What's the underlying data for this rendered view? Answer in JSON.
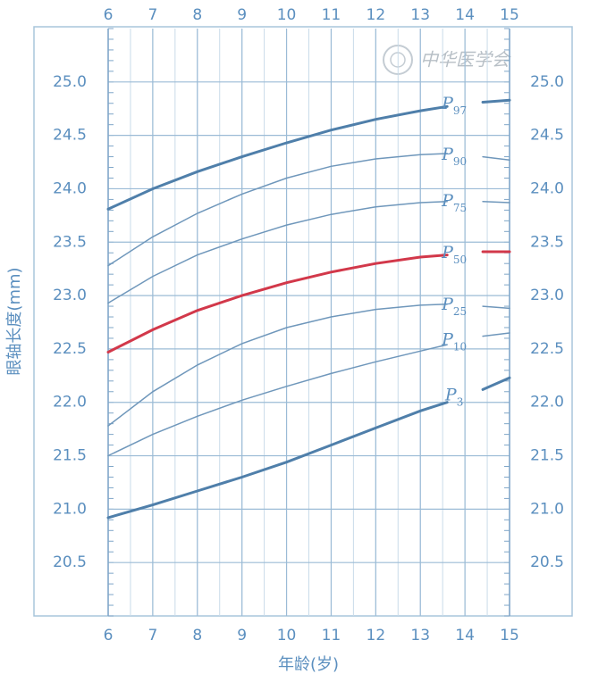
{
  "chart_data": {
    "type": "line",
    "x_label": "年龄(岁)",
    "y_label": "眼轴长度(mm)",
    "watermark": "中华医学会",
    "x": [
      6,
      7,
      8,
      9,
      10,
      11,
      12,
      13,
      13.6,
      14,
      14.4,
      15
    ],
    "xlim": [
      6,
      15
    ],
    "xticks": [
      6,
      7,
      8,
      9,
      10,
      11,
      12,
      13,
      14,
      15
    ],
    "ylim": [
      20.0,
      25.5
    ],
    "yticks": [
      {
        "value": 20.5,
        "label": "20.5"
      },
      {
        "value": 21,
        "label": "21.0"
      },
      {
        "value": 21.5,
        "label": "21.5"
      },
      {
        "value": 22,
        "label": "22.0"
      },
      {
        "value": 22.5,
        "label": "22.5"
      },
      {
        "value": 23,
        "label": "23.0"
      },
      {
        "value": 23.5,
        "label": "23.5"
      },
      {
        "value": 24,
        "label": "24.0"
      },
      {
        "value": 24.5,
        "label": "24.5"
      },
      {
        "value": 25,
        "label": "25.0"
      }
    ],
    "minor_ytick_step": 0.1,
    "minor_xgrid_step": 0.5,
    "grid": true,
    "series": [
      {
        "name": "P",
        "subscript": "97",
        "color": "#4f7faa",
        "width": 3,
        "values": [
          23.81,
          24.0,
          24.16,
          24.3,
          24.43,
          24.55,
          24.65,
          24.73,
          24.77,
          null,
          24.81,
          24.83
        ]
      },
      {
        "name": "P",
        "subscript": "90",
        "color": "#6f97bb",
        "width": 1.5,
        "values": [
          23.28,
          23.55,
          23.77,
          23.95,
          24.1,
          24.21,
          24.28,
          24.32,
          24.33,
          null,
          24.3,
          24.27
        ]
      },
      {
        "name": "P",
        "subscript": "75",
        "color": "#6f97bb",
        "width": 1.5,
        "values": [
          22.93,
          23.18,
          23.38,
          23.53,
          23.66,
          23.76,
          23.83,
          23.87,
          23.88,
          null,
          23.88,
          23.87
        ]
      },
      {
        "name": "P",
        "subscript": "50",
        "color": "#d2384a",
        "width": 3,
        "values": [
          22.47,
          22.68,
          22.86,
          23.0,
          23.12,
          23.22,
          23.3,
          23.36,
          23.38,
          null,
          23.41,
          23.41
        ]
      },
      {
        "name": "P",
        "subscript": "25",
        "color": "#6f97bb",
        "width": 1.5,
        "values": [
          21.78,
          22.1,
          22.35,
          22.55,
          22.7,
          22.8,
          22.87,
          22.91,
          22.92,
          null,
          22.9,
          22.88
        ]
      },
      {
        "name": "P",
        "subscript": "10",
        "color": "#6f97bb",
        "width": 1.5,
        "values": [
          21.5,
          21.7,
          21.87,
          22.02,
          22.15,
          22.27,
          22.38,
          22.48,
          22.54,
          null,
          22.62,
          22.65
        ]
      },
      {
        "name": "P",
        "subscript": "3",
        "color": "#4f7faa",
        "width": 3,
        "values": [
          20.92,
          21.04,
          21.17,
          21.3,
          21.44,
          21.6,
          21.76,
          21.92,
          22.0,
          null,
          22.12,
          22.23
        ]
      }
    ]
  }
}
